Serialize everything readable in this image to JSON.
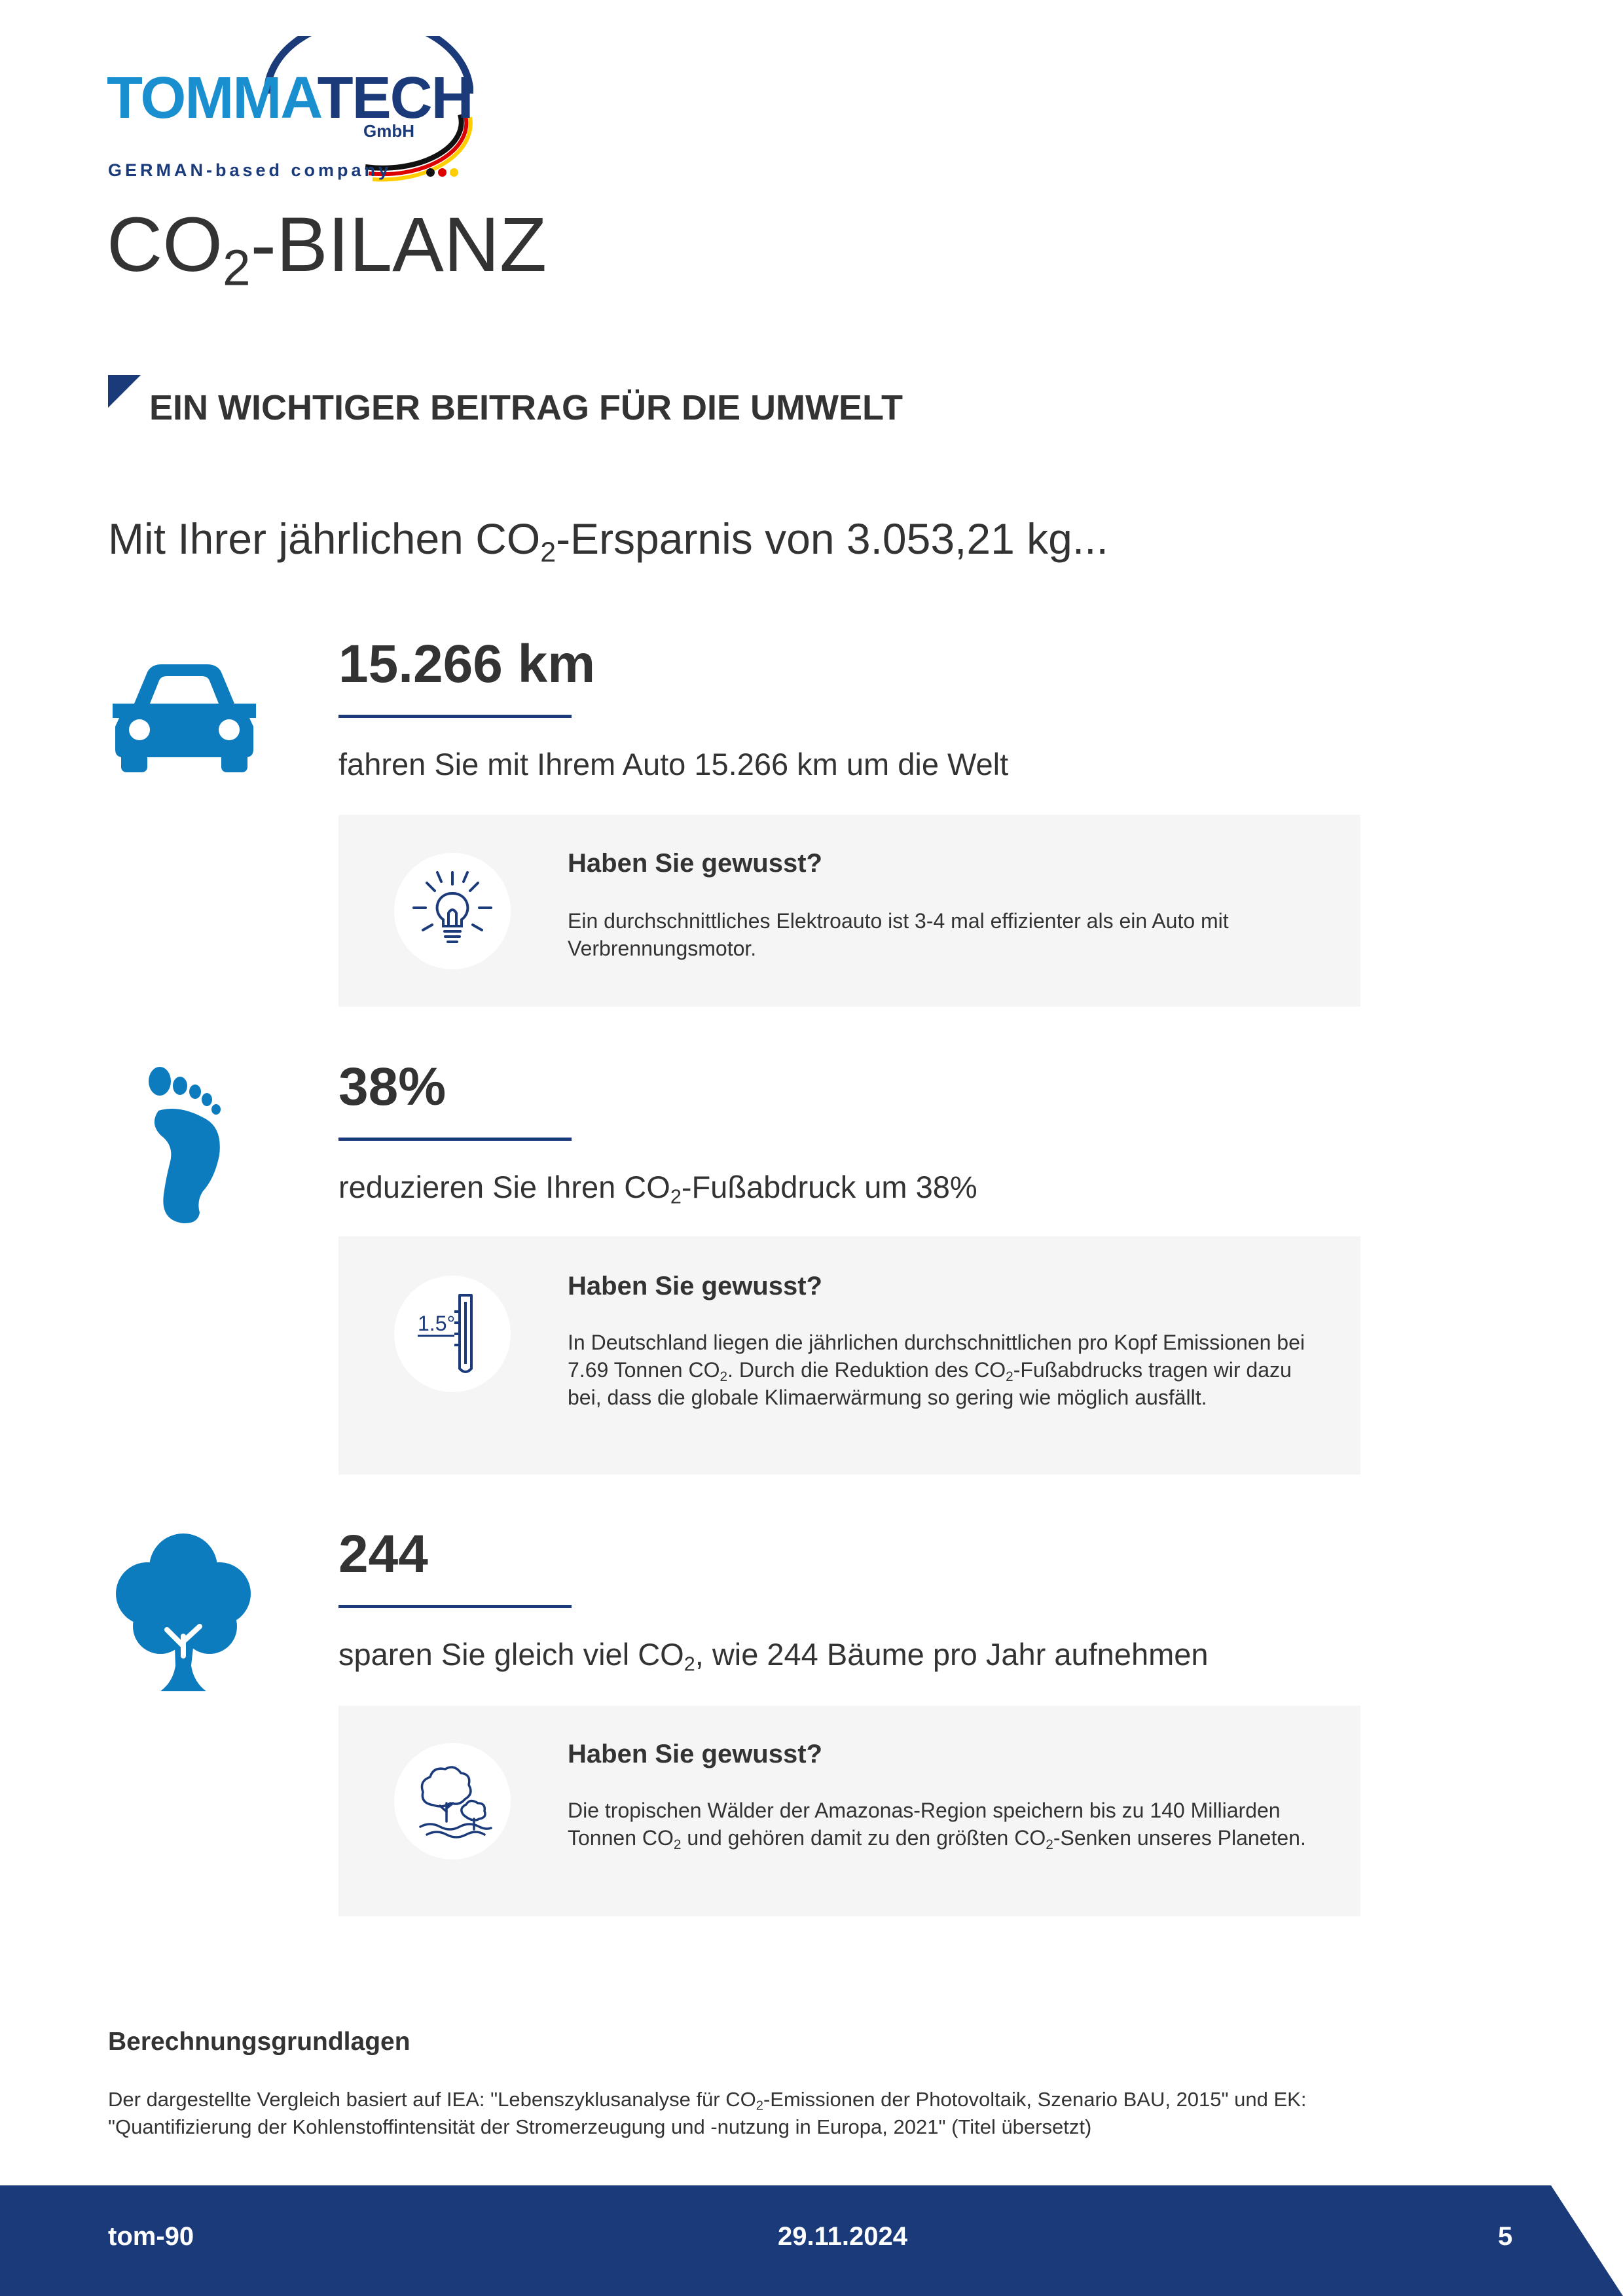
{
  "logo": {
    "word_part1": "TOMMA",
    "word_part2": "TECH",
    "gmbh": "GmbH",
    "tagline": "GERMAN-based company"
  },
  "title": {
    "prefix": "CO",
    "sub": "2",
    "suffix": "-BILANZ"
  },
  "section_title": "EIN WICHTIGER BEITRAG FÜR DIE UMWELT",
  "intro": {
    "prefix": "Mit Ihrer jährlichen CO",
    "sub": "2",
    "suffix": "-Ersparnis von 3.053,21 kg..."
  },
  "stats": {
    "car": {
      "icon": "car-icon",
      "value": "15.266 km",
      "desc": "fahren Sie mit Ihrem Auto 15.266 km um die Welt",
      "info_icon": "lightbulb-icon",
      "info_title": "Haben Sie gewusst?",
      "info_text": "Ein durchschnittliches Elektroauto ist 3-4 mal effizienter als ein Auto mit Verbrennungsmotor."
    },
    "footprint": {
      "icon": "footprint-icon",
      "value": "38%",
      "desc_prefix": "reduzieren Sie Ihren CO",
      "desc_sub": "2",
      "desc_suffix": "-Fußabdruck um 38%",
      "info_icon": "thermometer-icon",
      "info_icon_label": "1.5°",
      "info_title": "Haben Sie gewusst?",
      "info_p1": "In Deutschland liegen die jährlichen durchschnittlichen pro Kopf Emissionen bei 7.69 Tonnen CO",
      "info_sub1": "2",
      "info_p2": ". Durch die Reduktion des CO",
      "info_sub2": "2",
      "info_p3": "-Fußabdrucks tragen wir dazu bei, dass die globale Klimaerwärmung so gering wie möglich ausfällt."
    },
    "trees": {
      "icon": "tree-icon",
      "value": "244",
      "desc_prefix": "sparen Sie gleich viel CO",
      "desc_sub": "2",
      "desc_suffix": ", wie 244 Bäume pro Jahr aufnehmen",
      "info_icon": "forest-icon",
      "info_title": "Haben Sie gewusst?",
      "info_p1": "Die tropischen Wälder der Amazonas-Region speichern bis zu 140 Milliarden Tonnen CO",
      "info_sub1": "2",
      "info_p2": " und gehören damit zu den größten CO",
      "info_sub2": "2",
      "info_p3": "-Senken unseres Planeten."
    }
  },
  "basis": {
    "heading": "Berechnungsgrundlagen",
    "p1": "Der dargestellte Vergleich basiert auf IEA: \"Lebenszyklusanalyse für CO",
    "sub": "2",
    "p2": "-Emissionen der Photovoltaik, Szenario BAU, 2015\" und EK: \"Quantifizierung der Kohlenstoffintensität der Stromerzeugung und -nutzung in Europa, 2021\" (Titel übersetzt)"
  },
  "footer": {
    "left": "tom-90",
    "center": "29.11.2024",
    "right": "5"
  },
  "colors": {
    "navy": "#1b3a7a",
    "brand_blue": "#1a8fd0",
    "icon_blue": "#0d7cbf",
    "box_bg": "#f5f5f5",
    "flag_black": "#111111",
    "flag_red": "#dd0000",
    "flag_gold": "#ffce00"
  }
}
